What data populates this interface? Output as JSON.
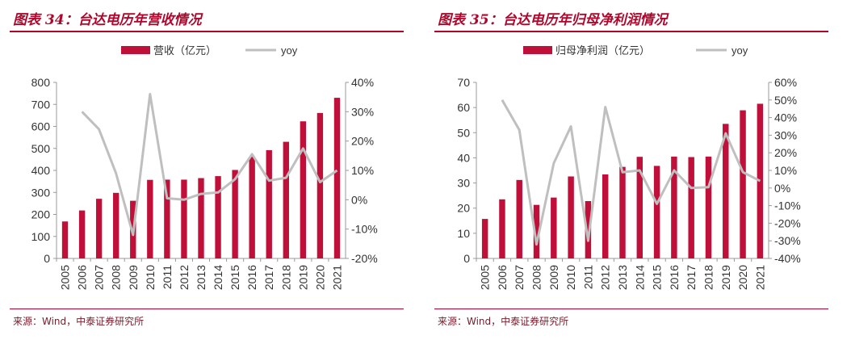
{
  "colors": {
    "bar": "#c0103a",
    "line": "#bfbfbf",
    "accent": "#b0062b"
  },
  "charts": [
    {
      "figure_title": "图表 34：台达电历年营收情况",
      "source": "来源：Wind，中泰证券研究所"
    },
    {
      "figure_title": "图表 35：台达电历年归母净利润情况",
      "source": "来源：Wind，中泰证券研究所"
    }
  ],
  "chart_data": [
    {
      "type": "bar",
      "title": "图表 34：台达电历年营收情况",
      "categories": [
        "2005",
        "2006",
        "2007",
        "2008",
        "2009",
        "2010",
        "2011",
        "2012",
        "2013",
        "2014",
        "2015",
        "2016",
        "2017",
        "2018",
        "2019",
        "2020",
        "2021"
      ],
      "series": [
        {
          "name": "营收（亿元）",
          "type": "bar",
          "axis": "left",
          "values": [
            168,
            218,
            271,
            298,
            262,
            357,
            358,
            358,
            365,
            374,
            402,
            462,
            492,
            530,
            623,
            661,
            730
          ]
        },
        {
          "name": "yoy",
          "type": "line",
          "axis": "right",
          "values": [
            null,
            30,
            24,
            9,
            -12,
            36,
            0.5,
            0,
            2,
            2.5,
            7,
            15.5,
            6.5,
            7.5,
            17.5,
            6,
            10
          ]
        }
      ],
      "left_axis": {
        "min": 0,
        "max": 800,
        "step": 100,
        "ticks": [
          "0",
          "100",
          "200",
          "300",
          "400",
          "500",
          "600",
          "700",
          "800"
        ]
      },
      "right_axis": {
        "min": -20,
        "max": 40,
        "step": 10,
        "ticks": [
          "-20%",
          "-10%",
          "0%",
          "10%",
          "20%",
          "30%",
          "40%"
        ]
      },
      "legend": [
        "营收（亿元）",
        "yoy"
      ],
      "legend_position": "top-center",
      "grid": false
    },
    {
      "type": "bar",
      "title": "图表 35：台达电历年归母净利润情况",
      "categories": [
        "2005",
        "2006",
        "2007",
        "2008",
        "2009",
        "2010",
        "2011",
        "2012",
        "2013",
        "2014",
        "2015",
        "2016",
        "2017",
        "2018",
        "2019",
        "2020",
        "2021"
      ],
      "series": [
        {
          "name": "归母净利润（亿元）",
          "type": "bar",
          "axis": "left",
          "values": [
            15.7,
            23.5,
            31.2,
            21.3,
            24.2,
            32.6,
            22.8,
            33.4,
            36.4,
            40.4,
            36.8,
            40.5,
            40.3,
            40.5,
            53.5,
            58.9,
            61.5
          ]
        },
        {
          "name": "yoy",
          "type": "line",
          "axis": "right",
          "values": [
            null,
            50,
            33,
            -32,
            14,
            35,
            -30,
            46,
            9,
            10,
            -9,
            10,
            0,
            0.5,
            31,
            9,
            4
          ]
        }
      ],
      "left_axis": {
        "min": 0,
        "max": 70,
        "step": 10,
        "ticks": [
          "0",
          "10",
          "20",
          "30",
          "40",
          "50",
          "60",
          "70"
        ]
      },
      "right_axis": {
        "min": -40,
        "max": 60,
        "step": 10,
        "ticks": [
          "-40%",
          "-30%",
          "-20%",
          "-10%",
          "0%",
          "10%",
          "20%",
          "30%",
          "40%",
          "50%",
          "60%"
        ]
      },
      "legend": [
        "归母净利润（亿元）",
        "yoy"
      ],
      "legend_position": "top-center",
      "grid": false
    }
  ]
}
